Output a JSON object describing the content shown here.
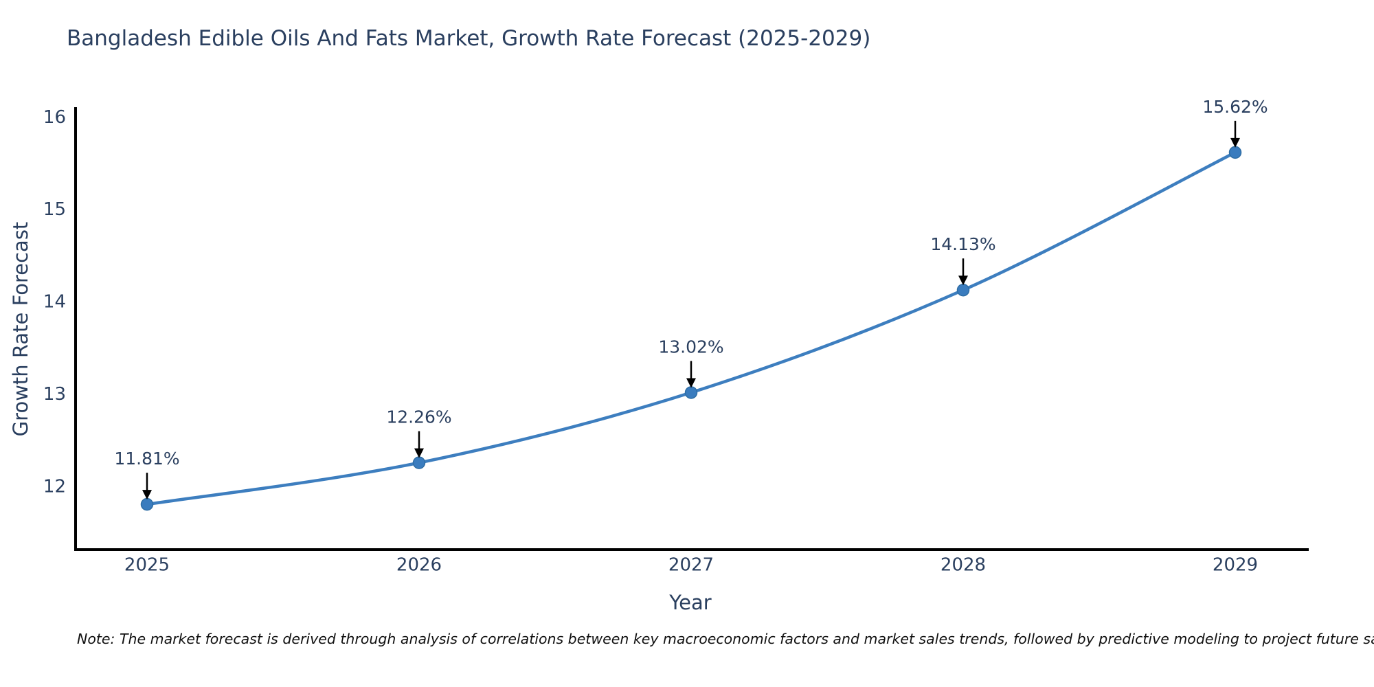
{
  "title": "Bangladesh Edible Oils And Fats Market, Growth Rate Forecast (2025-2029)",
  "note": "Note: The market forecast is derived through analysis of correlations between key macroeconomic factors and market sales trends, followed by predictive modeling to project future sales",
  "chart_data": {
    "type": "line",
    "title": "Bangladesh Edible Oils And Fats Market, Growth Rate Forecast (2025-2029)",
    "xlabel": "Year",
    "ylabel": "Growth Rate Forecast",
    "categories": [
      "2025",
      "2026",
      "2027",
      "2028",
      "2029"
    ],
    "series": [
      {
        "name": "Growth Rate Forecast",
        "values": [
          11.81,
          12.26,
          13.02,
          14.13,
          15.62
        ]
      }
    ],
    "point_labels": [
      "11.81%",
      "12.26%",
      "13.02%",
      "14.13%",
      "15.62%"
    ],
    "y_ticks": [
      12,
      13,
      14,
      15,
      16
    ],
    "ylim": [
      11.32,
      16.11
    ],
    "grid": false,
    "legend_position": "none",
    "line_smoothing": "spline",
    "colors": {
      "line": "#3d7ebf",
      "marker_fill": "#3a7cbe",
      "marker_edge": "#2e6da4",
      "annotation_arrow": "#000000",
      "annotation_text": "#2a3f5f",
      "tick_text": "#2a3f5f",
      "spine": "#000000",
      "background": "#ffffff"
    }
  }
}
